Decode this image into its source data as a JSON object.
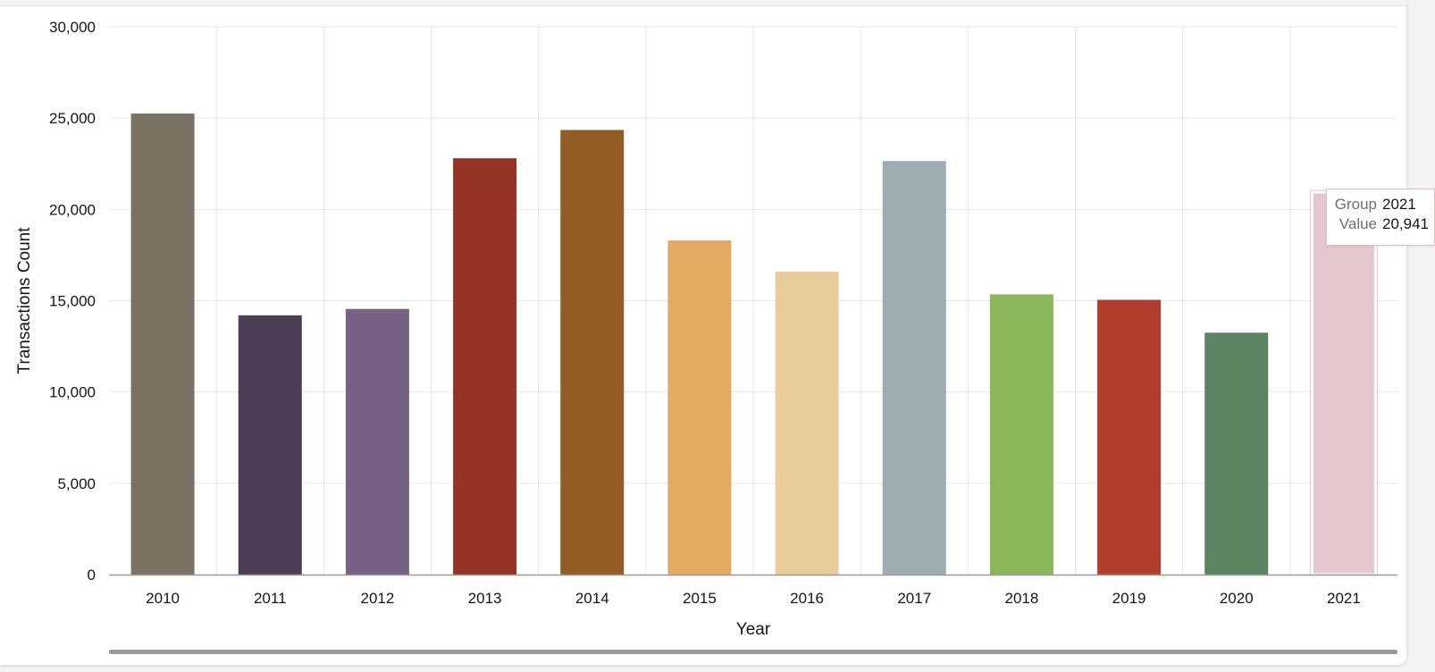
{
  "chart_data": {
    "type": "bar",
    "xlabel": "Year",
    "ylabel": "Transactions Count",
    "ylim": [
      0,
      30000
    ],
    "yticks": [
      "0",
      "5,000",
      "10,000",
      "15,000",
      "20,000",
      "25,000",
      "30,000"
    ],
    "yticks_values": [
      0,
      5000,
      10000,
      15000,
      20000,
      25000,
      30000
    ],
    "grid": true,
    "categories": [
      "2010",
      "2011",
      "2012",
      "2013",
      "2014",
      "2015",
      "2016",
      "2017",
      "2018",
      "2019",
      "2020",
      "2021"
    ],
    "values": [
      25250,
      14200,
      14550,
      22800,
      24350,
      18300,
      16600,
      22650,
      15350,
      15050,
      13250,
      20941
    ],
    "colors": [
      "#7a7363",
      "#4b3d56",
      "#756285",
      "#943424",
      "#935c22",
      "#e3aa64",
      "#e8cc9a",
      "#9eadb0",
      "#8cb65a",
      "#b33d2d",
      "#5b8460",
      "#e5c7cf"
    ],
    "highlighted": "2021"
  },
  "tooltip": {
    "group_label": "Group",
    "group_value": "2021",
    "value_label": "Value",
    "value_value": "20,941"
  }
}
